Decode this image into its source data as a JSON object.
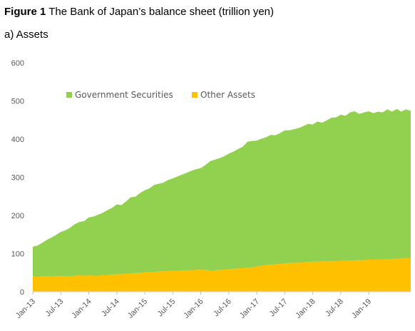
{
  "figure": {
    "label": "Figure 1",
    "title": "The Bank of Japan’s balance sheet (trillion yen)",
    "subtitle": "a) Assets"
  },
  "chart_data": {
    "type": "area",
    "stacked": true,
    "ylim": [
      0,
      600
    ],
    "yticks": [
      0,
      100,
      200,
      300,
      400,
      500,
      600
    ],
    "x": [
      "2013-01",
      "2013-02",
      "2013-03",
      "2013-04",
      "2013-05",
      "2013-06",
      "2013-07",
      "2013-08",
      "2013-09",
      "2013-10",
      "2013-11",
      "2013-12",
      "2014-01",
      "2014-02",
      "2014-03",
      "2014-04",
      "2014-05",
      "2014-06",
      "2014-07",
      "2014-08",
      "2014-09",
      "2014-10",
      "2014-11",
      "2014-12",
      "2015-01",
      "2015-02",
      "2015-03",
      "2015-04",
      "2015-05",
      "2015-06",
      "2015-07",
      "2015-08",
      "2015-09",
      "2015-10",
      "2015-11",
      "2015-12",
      "2016-01",
      "2016-02",
      "2016-03",
      "2016-04",
      "2016-05",
      "2016-06",
      "2016-07",
      "2016-08",
      "2016-09",
      "2016-10",
      "2016-11",
      "2016-12",
      "2017-01",
      "2017-02",
      "2017-03",
      "2017-04",
      "2017-05",
      "2017-06",
      "2017-07",
      "2017-08",
      "2017-09",
      "2017-10",
      "2017-11",
      "2017-12",
      "2018-01",
      "2018-02",
      "2018-03",
      "2018-04",
      "2018-05",
      "2018-06",
      "2018-07",
      "2018-08",
      "2018-09",
      "2018-10",
      "2018-11",
      "2018-12",
      "2019-01",
      "2019-02",
      "2019-03",
      "2019-04",
      "2019-05",
      "2019-06",
      "2019-07",
      "2019-08",
      "2019-09",
      "2019-10"
    ],
    "xtick_labels": [
      "Jan-13",
      "Jul-13",
      "Jan-14",
      "Jul-14",
      "Jan-15",
      "Jul-15",
      "Jan-16",
      "Jul-16",
      "Jan-17",
      "Jul-17",
      "Jan-18",
      "Jul-18",
      "Jan-19"
    ],
    "series": [
      {
        "name": "Other Assets",
        "color": "#ffc000",
        "values": [
          40,
          39,
          40,
          41,
          40,
          41,
          42,
          40,
          40,
          42,
          43,
          42,
          43,
          42,
          42,
          44,
          44,
          45,
          46,
          46,
          47,
          48,
          49,
          49,
          51,
          51,
          52,
          53,
          54,
          54,
          55,
          55,
          56,
          56,
          57,
          57,
          58,
          57,
          56,
          56,
          57,
          58,
          59,
          60,
          61,
          62,
          63,
          64,
          66,
          68,
          70,
          71,
          72,
          73,
          74,
          75,
          76,
          76,
          77,
          78,
          79,
          79,
          80,
          80,
          80,
          80,
          81,
          81,
          82,
          82,
          83,
          83,
          84,
          84,
          85,
          85,
          86,
          86,
          87,
          87,
          88,
          88
        ]
      },
      {
        "name": "Government Securities",
        "color": "#92d050",
        "values": [
          78,
          82,
          88,
          95,
          102,
          108,
          115,
          121,
          128,
          135,
          140,
          143,
          152,
          155,
          160,
          163,
          170,
          175,
          183,
          181,
          190,
          200,
          200,
          210,
          215,
          220,
          228,
          230,
          232,
          239,
          242,
          247,
          251,
          256,
          260,
          264,
          266,
          275,
          286,
          290,
          293,
          297,
          303,
          307,
          313,
          318,
          330,
          331,
          330,
          333,
          335,
          340,
          338,
          343,
          349,
          348,
          350,
          353,
          357,
          362,
          359,
          367,
          363,
          369,
          376,
          377,
          383,
          380,
          388,
          391,
          383,
          387,
          389,
          384,
          387,
          385,
          392,
          386,
          392,
          385,
          390,
          386
        ]
      }
    ]
  }
}
